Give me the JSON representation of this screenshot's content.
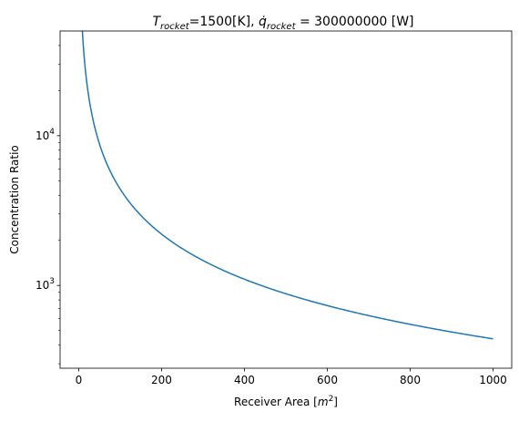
{
  "chart_data": {
    "type": "line",
    "title_parts": {
      "t_sym": "T",
      "t_sub": "rocket",
      "t_val": "=1500[K], ",
      "q_sym": "q̇",
      "q_sub": "rocket",
      "q_val": " = 300000000 [W]"
    },
    "xlabel_parts": {
      "base": "Receiver Area [",
      "m": "m",
      "exp": "2",
      "close": "]"
    },
    "ylabel": "Concentration Ratio",
    "y_scale": "log",
    "xlim": [
      -45,
      1045
    ],
    "ylim": [
      280,
      50000
    ],
    "grid": false,
    "x_ticks": [
      0,
      200,
      400,
      600,
      800,
      1000
    ],
    "y_major_ticks": [
      {
        "value": 1000,
        "base": "10",
        "exp": "3"
      },
      {
        "value": 10000,
        "base": "10",
        "exp": "4"
      }
    ],
    "y_minor_ticks": [
      300,
      400,
      500,
      600,
      700,
      800,
      900,
      2000,
      3000,
      4000,
      5000,
      6000,
      7000,
      8000,
      9000,
      20000,
      30000,
      40000
    ],
    "series": [
      {
        "color": "#1f77b4",
        "function": "y = 440000 / x",
        "x_range": [
          0.5,
          1000
        ]
      }
    ]
  }
}
